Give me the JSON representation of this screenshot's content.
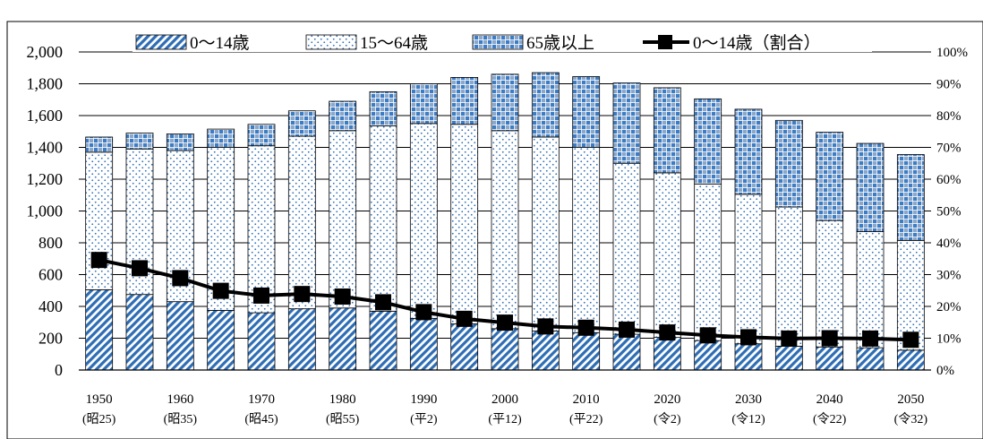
{
  "chart_data": {
    "type": "bar",
    "stacked": true,
    "title": "",
    "xlabel": "",
    "ylabel": "",
    "ylim": [
      0,
      2000
    ],
    "y2lim": [
      0,
      100
    ],
    "grid": true,
    "legend_position": "top",
    "y_ticks": [
      "0",
      "200",
      "400",
      "600",
      "800",
      "1,000",
      "1,200",
      "1,400",
      "1,600",
      "1,800",
      "2,000"
    ],
    "y2_ticks": [
      "0%",
      "10%",
      "20%",
      "30%",
      "40%",
      "50%",
      "60%",
      "70%",
      "80%",
      "90%",
      "100%"
    ],
    "categories": [
      "1950",
      "1955",
      "1960",
      "1965",
      "1970",
      "1975",
      "1980",
      "1985",
      "1990",
      "1995",
      "2000",
      "2005",
      "2010",
      "2015",
      "2020",
      "2025",
      "2030",
      "2035",
      "2040",
      "2045",
      "2050"
    ],
    "x_tick_labels": [
      {
        "year": "1950",
        "era": "(昭25)"
      },
      {
        "year": "1960",
        "era": "(昭35)"
      },
      {
        "year": "1970",
        "era": "(昭45)"
      },
      {
        "year": "1980",
        "era": "(昭55)"
      },
      {
        "year": "1990",
        "era": "(平2)"
      },
      {
        "year": "2000",
        "era": "(平12)"
      },
      {
        "year": "2010",
        "era": "(平22)"
      },
      {
        "year": "2020",
        "era": "(令2)"
      },
      {
        "year": "2030",
        "era": "(令12)"
      },
      {
        "year": "2040",
        "era": "(令22)"
      },
      {
        "year": "2050",
        "era": "(令32)"
      }
    ],
    "series": [
      {
        "name": "0～14歳",
        "kind": "bar",
        "pattern": "diagonal",
        "color": "#2e6db4",
        "values": [
          505,
          475,
          430,
          375,
          360,
          385,
          390,
          370,
          325,
          290,
          260,
          245,
          235,
          225,
          205,
          185,
          165,
          150,
          145,
          140,
          125
        ]
      },
      {
        "name": "15～64歳",
        "kind": "bar",
        "pattern": "dots",
        "color": "#2e6db4",
        "values": [
          865,
          915,
          950,
          1025,
          1050,
          1085,
          1115,
          1165,
          1225,
          1255,
          1245,
          1220,
          1165,
          1075,
          1035,
          985,
          940,
          875,
          795,
          730,
          690
        ]
      },
      {
        "name": "65歳以上",
        "kind": "bar",
        "pattern": "checker",
        "color": "#2e6db4",
        "values": [
          95,
          100,
          105,
          115,
          135,
          160,
          185,
          215,
          250,
          295,
          355,
          405,
          445,
          505,
          535,
          535,
          535,
          545,
          555,
          555,
          540
        ]
      },
      {
        "name": "0～14歳（割合）",
        "kind": "line",
        "axis": "right",
        "color": "#000000",
        "values": [
          34.6,
          32.0,
          28.9,
          24.9,
          23.4,
          23.9,
          23.1,
          21.3,
          18.2,
          16.1,
          14.9,
          13.7,
          13.3,
          12.7,
          11.8,
          10.9,
          10.3,
          9.9,
          10.0,
          9.9,
          9.5
        ]
      }
    ]
  }
}
